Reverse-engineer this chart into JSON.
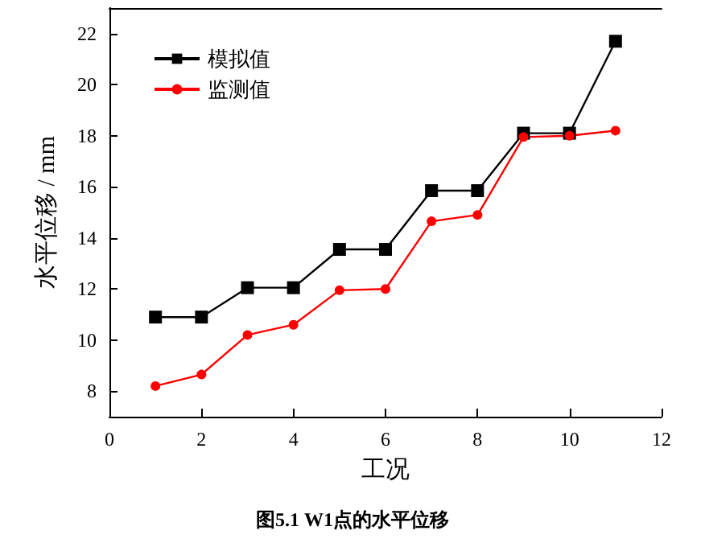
{
  "chart_data": {
    "type": "line",
    "title": "图5.1 W1点的水平位移",
    "xlabel": "工况",
    "ylabel": "水平位移 / mm",
    "x": [
      1,
      2,
      3,
      4,
      5,
      6,
      7,
      8,
      9,
      10,
      11
    ],
    "series": [
      {
        "name": "模拟值",
        "color": "#000000",
        "marker": "square",
        "values": [
          10.9,
          10.9,
          12.05,
          12.05,
          13.55,
          13.55,
          15.85,
          15.85,
          18.1,
          18.1,
          21.7
        ]
      },
      {
        "name": "监测值",
        "color": "#ff0000",
        "marker": "circle",
        "values": [
          8.2,
          8.65,
          10.2,
          10.6,
          11.95,
          12.0,
          14.65,
          14.9,
          17.95,
          18.0,
          18.2
        ]
      }
    ],
    "xlim": [
      0,
      12
    ],
    "xticks": [
      0,
      2,
      4,
      6,
      8,
      10,
      12
    ],
    "ylim": [
      7,
      23
    ],
    "yticks": [
      8,
      10,
      12,
      14,
      16,
      18,
      20,
      22
    ],
    "grid": false,
    "legend": "top left",
    "line_style": "solid"
  }
}
